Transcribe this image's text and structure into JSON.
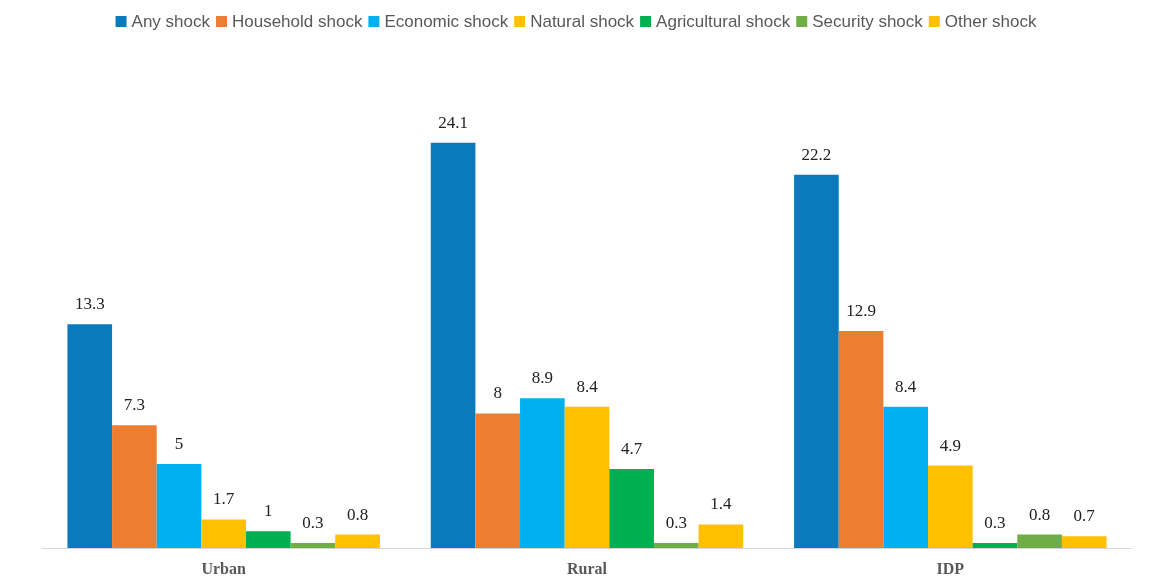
{
  "chart_data": {
    "type": "bar",
    "categories": [
      "Urban",
      "Rural",
      "IDP"
    ],
    "series": [
      {
        "name": "Any shock",
        "color": "#0a7abd",
        "values": [
          13.3,
          24.1,
          22.2
        ]
      },
      {
        "name": "Household shock",
        "color": "#ed7d31",
        "values": [
          7.3,
          8,
          12.9
        ]
      },
      {
        "name": "Economic shock",
        "color": "#00b0f0",
        "values": [
          5,
          8.9,
          8.4
        ]
      },
      {
        "name": "Natural shock",
        "color": "#ffc000",
        "values": [
          1.7,
          8.4,
          4.9
        ]
      },
      {
        "name": "Agricultural shock",
        "color": "#00b050",
        "values": [
          1,
          4.7,
          0.3
        ]
      },
      {
        "name": "Security shock",
        "color": "#70ad47",
        "values": [
          0.3,
          0.3,
          0.8
        ]
      },
      {
        "name": "Other shock",
        "color": "#ffc000",
        "values": [
          0.8,
          1.4,
          0.7
        ]
      }
    ],
    "data_labels": true,
    "grid": false,
    "legend": "top"
  }
}
